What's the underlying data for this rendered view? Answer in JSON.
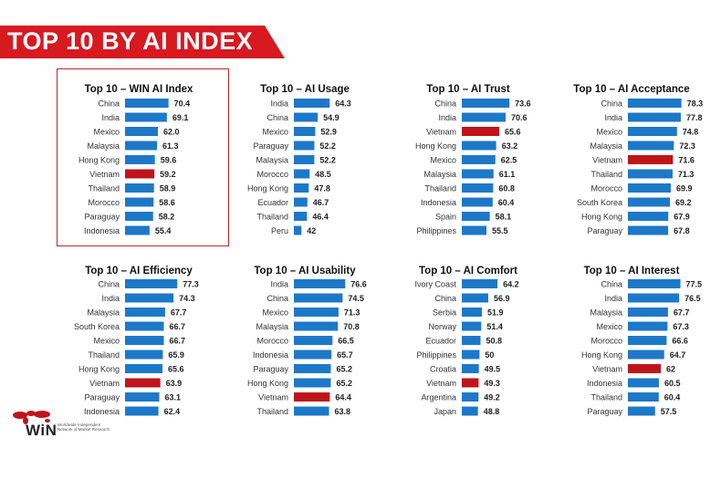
{
  "header": {
    "title": "TOP 10 BY AI INDEX"
  },
  "colors": {
    "banner": "#d71920",
    "bar": "#1e78c8",
    "highlight_bar": "#c0141c",
    "highlight_box": "#c0272d"
  },
  "highlight_country": "Vietnam",
  "logo": {
    "name": "WiN",
    "subtitle": "Worldwide Independent Network of Market Research",
    "icon": "world-map-icon"
  },
  "chart_data": [
    {
      "type": "bar",
      "title": "Top 10 – WIN AI Index",
      "categories": [
        "China",
        "India",
        "Mexico",
        "Malaysia",
        "Hong Kong",
        "Vietnam",
        "Thailand",
        "Morocco",
        "Paraguay",
        "Indonesia"
      ],
      "values": [
        "70.4",
        "69.1",
        "62.0",
        "61.3",
        "59.6",
        "59.2",
        "58.9",
        "58.6",
        "58.2",
        "55.4"
      ]
    },
    {
      "type": "bar",
      "title": "Top 10 – AI Usage",
      "categories": [
        "India",
        "China",
        "Mexico",
        "Paraguay",
        "Malaysia",
        "Morocco",
        "Hong Kong",
        "Ecuador",
        "Thailand",
        "Peru"
      ],
      "values": [
        "64.3",
        "54.9",
        "52.9",
        "52.2",
        "52.2",
        "48.5",
        "47.8",
        "46.7",
        "46.4",
        "42"
      ]
    },
    {
      "type": "bar",
      "title": "Top 10 – AI Trust",
      "categories": [
        "China",
        "India",
        "Vietnam",
        "Hong Kong",
        "Mexico",
        "Malaysia",
        "Thailand",
        "Indonesia",
        "Spain",
        "Philippines"
      ],
      "values": [
        "73.6",
        "70.6",
        "65.6",
        "63.2",
        "62.5",
        "61.1",
        "60.8",
        "60.4",
        "58.1",
        "55.5"
      ]
    },
    {
      "type": "bar",
      "title": "Top 10 – AI Acceptance",
      "categories": [
        "China",
        "India",
        "Mexico",
        "Malaysia",
        "Vietnam",
        "Thailand",
        "Morocco",
        "South Korea",
        "Hong Kong",
        "Paraguay"
      ],
      "values": [
        "78.3",
        "77.8",
        "74.8",
        "72.3",
        "71.6",
        "71.3",
        "69.9",
        "69.2",
        "67.9",
        "67.8"
      ]
    },
    {
      "type": "bar",
      "title": "Top 10 – AI Efficiency",
      "categories": [
        "China",
        "India",
        "Malaysia",
        "South Korea",
        "Mexico",
        "Thailand",
        "Hong Kong",
        "Vietnam",
        "Paraguay",
        "Indonesia"
      ],
      "values": [
        "77.3",
        "74.3",
        "67.7",
        "66.7",
        "66.7",
        "65.9",
        "65.6",
        "63.9",
        "63.1",
        "62.4"
      ]
    },
    {
      "type": "bar",
      "title": "Top 10 – AI Usability",
      "categories": [
        "India",
        "China",
        "Mexico",
        "Malaysia",
        "Morocco",
        "Indonesia",
        "Paraguay",
        "Hong Kong",
        "Vietnam",
        "Thailand"
      ],
      "values": [
        "76.6",
        "74.5",
        "71.3",
        "70.8",
        "66.5",
        "65.7",
        "65.2",
        "65.2",
        "64.4",
        "63.8"
      ]
    },
    {
      "type": "bar",
      "title": "Top 10 – AI Comfort",
      "categories": [
        "Ivory Coast",
        "China",
        "Serbia",
        "Norway",
        "Ecuador",
        "Philippines",
        "Croatia",
        "Vietnam",
        "Argentina",
        "Japan"
      ],
      "values": [
        "64.2",
        "56.9",
        "51.9",
        "51.4",
        "50.8",
        "50",
        "49.5",
        "49.3",
        "49.2",
        "48.8"
      ]
    },
    {
      "type": "bar",
      "title": "Top 10 – AI Interest",
      "categories": [
        "China",
        "India",
        "Malaysia",
        "Mexico",
        "Morocco",
        "Hong Kong",
        "Vietnam",
        "Indonesia",
        "Thailand",
        "Paraguay"
      ],
      "values": [
        "77.5",
        "76.5",
        "67.7",
        "67.3",
        "66.6",
        "64.7",
        "62",
        "60.5",
        "60.4",
        "57.5"
      ]
    }
  ]
}
